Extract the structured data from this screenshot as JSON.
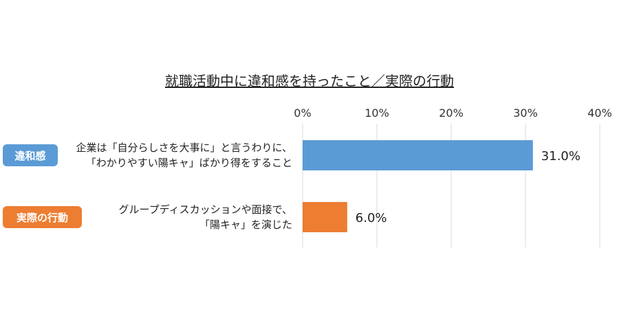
{
  "chart_data": {
    "type": "bar",
    "orientation": "horizontal",
    "title": "就職活動中に違和感を持ったこと／実際の行動",
    "xlim": [
      0,
      40
    ],
    "ticks": [
      "0%",
      "10%",
      "20%",
      "30%",
      "40%"
    ],
    "tick_values": [
      0,
      10,
      20,
      30,
      40
    ],
    "grid": true,
    "categories": [
      {
        "badge": "違和感",
        "badge_color": "#5b9bd5",
        "label_lines": [
          "企業は「自分らしさを大事に」と言うわりに、",
          "「わかりやすい陽キャ」ばかり得をすること"
        ],
        "value": 31.0,
        "value_label": "31.0%",
        "color": "#5b9bd5"
      },
      {
        "badge": "実際の行動",
        "badge_color": "#ed7d31",
        "label_lines": [
          "グループディスカッションや面接で、",
          "「陽キャ」を演じた"
        ],
        "value": 6.0,
        "value_label": "6.0%",
        "color": "#ed7d31"
      }
    ]
  }
}
